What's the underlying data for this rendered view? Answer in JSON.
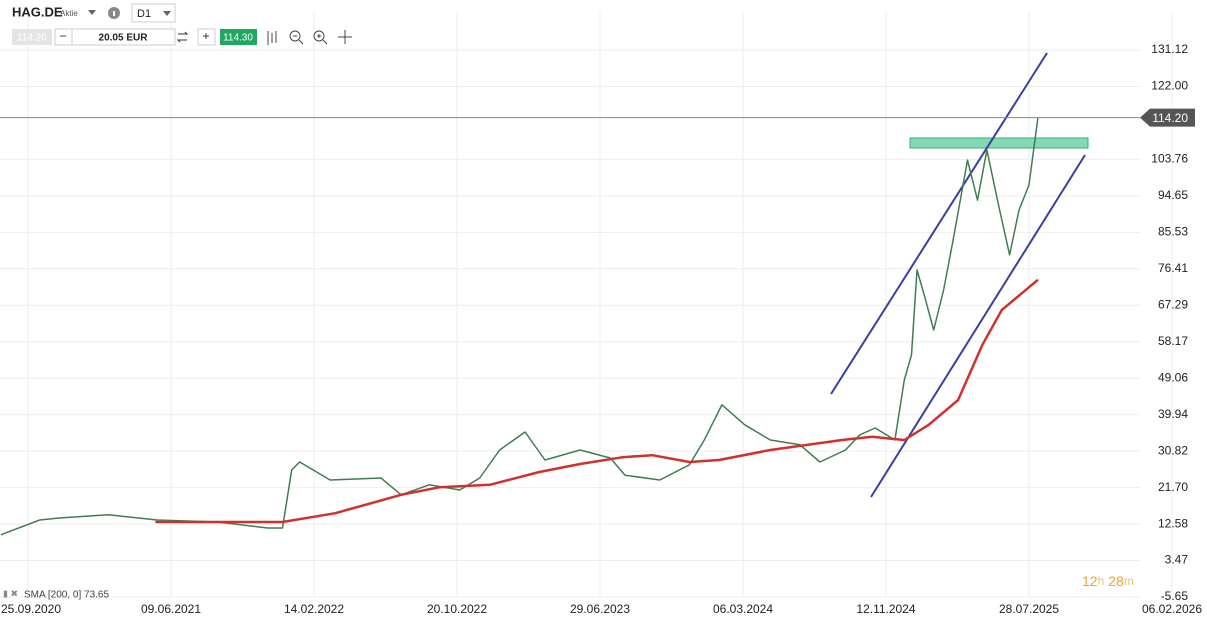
{
  "toolbar": {
    "kind": "Aktie",
    "timeframe": "D1",
    "sell": "114.20",
    "quantity": "20.05 EUR",
    "buy": "114.30"
  },
  "timer": [
    "12",
    "h",
    "28",
    "m"
  ],
  "chart_data": {
    "type": "line",
    "xlim": [
      "07.08.2020",
      "25.03.2026"
    ],
    "xticks": [
      "25.09.2020",
      "09.06.2021",
      "14.02.2022",
      "20.10.2022",
      "29.06.2023",
      "06.03.2024",
      "12.11.2024",
      "28.07.2025",
      "06.02.2026"
    ],
    "ylim": [
      -5.65,
      131.12
    ],
    "yticks": [
      131.12,
      {
        "value": 122,
        "label": "122.00"
      },
      103.76,
      94.65,
      85.53,
      76.41,
      67.29,
      58.17,
      49.06,
      39.94,
      30.82,
      {
        "value": 21.7,
        "label": "21.70"
      },
      12.58,
      3.47,
      -5.65
    ],
    "grid": true,
    "current_price": {
      "value": 114.2,
      "label": "114.20"
    },
    "series": [
      {
        "name": "HAG.DE",
        "color": "#3f7d52",
        "x": [
          "07.08.2020",
          "16.10.2020",
          "20.11.2020",
          "16.02.2021",
          "15.05.2021",
          "29.08.2021",
          "25.11.2021",
          "21.12.2021",
          "06.01.2022",
          "20.01.2022",
          "14.03.2022",
          "10.06.2022",
          "15.07.2022",
          "02.09.2022",
          "25.10.2022",
          "29.11.2022",
          "03.01.2023",
          "17.02.2023",
          "24.03.2023",
          "25.05.2023",
          "17.07.2023",
          "12.08.2023",
          "12.10.2023",
          "03.12.2023",
          "29.12.2023",
          "29.01.2024",
          "09.03.2024",
          "23.04.2024",
          "14.06.2024",
          "19.07.2024",
          "02.09.2024",
          "27.09.2024",
          "24.10.2024",
          "28.11.2024",
          "15.12.2024",
          "28.12.2024",
          "07.01.2025",
          "20.01.2025",
          "06.02.2025",
          "24.02.2025",
          "13.03.2025",
          "08.04.2025",
          "26.04.2025",
          "13.05.2025",
          "03.06.2025",
          "23.06.2025",
          "10.07.2025",
          "28.07.2025",
          "09.08.2025"
        ],
        "values": [
          9.9,
          13.6,
          14.1,
          14.9,
          13.6,
          13.1,
          11.6,
          11.6,
          26.1,
          28.1,
          23.6,
          24.1,
          19.9,
          22.4,
          21.1,
          24.1,
          31.1,
          35.6,
          28.6,
          31.1,
          29.1,
          24.8,
          23.6,
          27.4,
          33.6,
          42.4,
          37.4,
          33.6,
          32.4,
          28.1,
          31.1,
          34.9,
          36.6,
          33.6,
          48.6,
          54.9,
          76.1,
          69.9,
          61.1,
          71.1,
          83.6,
          103.6,
          93.6,
          106.1,
          92.4,
          79.9,
          91.1,
          97.4,
          114.2
        ]
      },
      {
        "name": "SMA [200, 0] 73.65",
        "color": "#d0312d",
        "x": [
          "12.05.2021",
          "21.12.2021",
          "23.03.2022",
          "15.07.2022",
          "20.09.2022",
          "17.12.2022",
          "14.03.2023",
          "25.05.2023",
          "08.08.2023",
          "29.09.2023",
          "03.12.2023",
          "24.01.2024",
          "23.04.2024",
          "27.08.2024",
          "19.10.2024",
          "15.12.2024",
          "28.01.2025",
          "22.03.2025",
          "05.05.2025",
          "09.06.2025",
          "09.08.2025"
        ],
        "values": [
          13.1,
          13.1,
          15.3,
          19.9,
          21.8,
          22.4,
          25.6,
          27.6,
          29.3,
          29.8,
          28.1,
          28.6,
          31.1,
          33.6,
          34.4,
          33.6,
          37.4,
          43.6,
          57.4,
          66.1,
          73.65
        ]
      }
    ]
  }
}
